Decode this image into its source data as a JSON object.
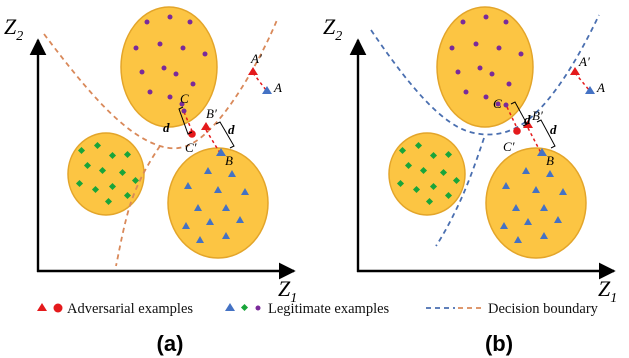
{
  "axes": {
    "y_label": "Z",
    "y_subscript": "2",
    "x_label": "Z",
    "x_subscript": "1"
  },
  "point_labels": {
    "a": "A",
    "a_prime": "A′",
    "b": "B",
    "b_prime": "B′",
    "c": "C",
    "c_prime": "C′",
    "d": "d"
  },
  "panels": [
    {
      "label": "(a)",
      "boundary_color": "#d9895a"
    },
    {
      "label": "(b)",
      "boundary_color": "#4a6fb0"
    }
  ],
  "legend": {
    "adversarial": "Adversarial examples",
    "legitimate": "Legitimate examples",
    "boundary": "Decision boundary"
  },
  "colors": {
    "cluster_fill": "#fcc543",
    "cluster_stroke": "#e3a52a",
    "purple": "#7a2a9a",
    "green": "#19a53a",
    "blue": "#4472c4",
    "red": "#e41a1c"
  }
}
